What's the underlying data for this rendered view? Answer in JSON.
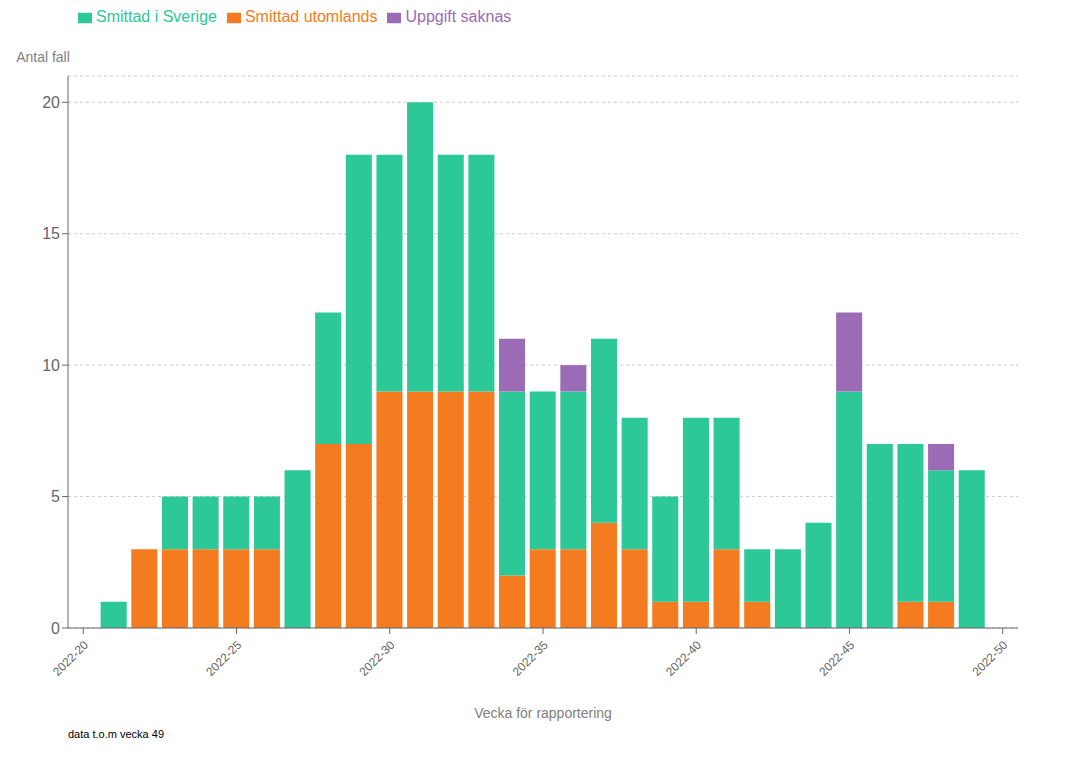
{
  "chart_data": {
    "type": "bar",
    "stacked": true,
    "x": [
      21,
      22,
      23,
      24,
      25,
      26,
      27,
      28,
      29,
      30,
      31,
      32,
      33,
      34,
      35,
      36,
      37,
      38,
      39,
      40,
      41,
      42,
      43,
      44,
      45,
      46,
      47,
      48,
      49
    ],
    "series": [
      {
        "name": "Smittad utomlands",
        "color": "#F47B20",
        "values": [
          0,
          3,
          3,
          3,
          3,
          3,
          0,
          7,
          7,
          9,
          9,
          9,
          9,
          2,
          3,
          3,
          4,
          3,
          1,
          1,
          3,
          1,
          0,
          0,
          0,
          0,
          1,
          1,
          0
        ]
      },
      {
        "name": "Smittad i Sverige",
        "color": "#2DC898",
        "values": [
          1,
          0,
          2,
          2,
          2,
          2,
          6,
          5,
          11,
          9,
          11,
          9,
          9,
          7,
          6,
          6,
          7,
          5,
          4,
          7,
          5,
          2,
          3,
          4,
          9,
          7,
          6,
          5,
          6
        ]
      },
      {
        "name": "Uppgift saknas",
        "color": "#9B6BB5",
        "values": [
          0,
          0,
          0,
          0,
          0,
          0,
          0,
          0,
          0,
          0,
          0,
          0,
          0,
          2,
          0,
          1,
          0,
          0,
          0,
          0,
          0,
          0,
          0,
          0,
          3,
          0,
          0,
          1,
          0
        ]
      }
    ],
    "xlabel": "Vecka för rapportering",
    "ylabel": "Antal fall",
    "annotations": [
      "data t.o.m vecka 49"
    ],
    "xlim": [
      19.5,
      50.5
    ],
    "xticks": [
      {
        "value": 20,
        "label": "2022-20"
      },
      {
        "value": 25,
        "label": "2022-25"
      },
      {
        "value": 30,
        "label": "2022-30"
      },
      {
        "value": 35,
        "label": "2022-35"
      },
      {
        "value": 40,
        "label": "2022-40"
      },
      {
        "value": 45,
        "label": "2022-45"
      },
      {
        "value": 50,
        "label": "2022-50"
      }
    ],
    "ylim": [
      0,
      21
    ],
    "yticks": [
      0,
      5,
      10,
      15,
      20
    ],
    "grid": true,
    "legend": "top"
  }
}
